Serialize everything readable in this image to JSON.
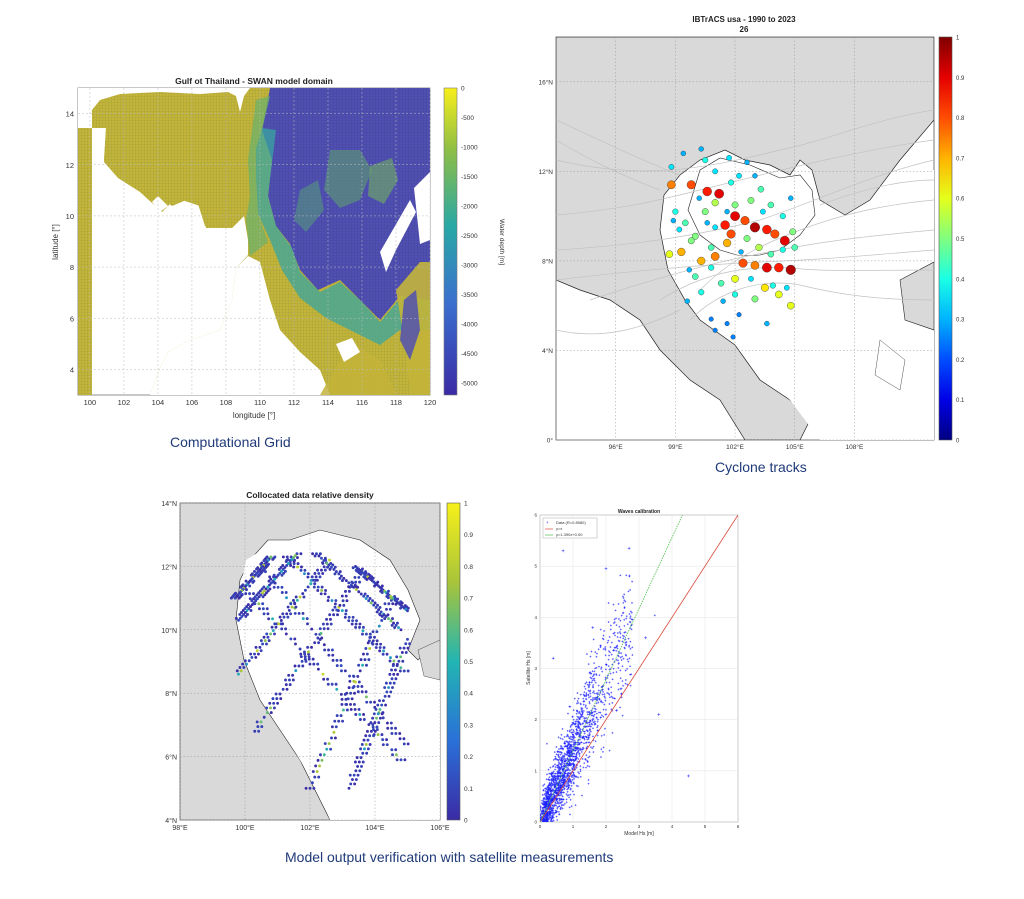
{
  "captions": {
    "grid": "Computational Grid",
    "cyclone": "Cyclone tracks",
    "verification": "Model output verification with satellite measurements"
  },
  "chart_data": [
    {
      "id": "grid",
      "type": "heatmap",
      "title": "Gulf ot Thailand - SWAN model domain",
      "xlabel": "longitude [°]",
      "ylabel": "latitude [°]",
      "xlim": [
        99.3,
        120
      ],
      "ylim": [
        3,
        15
      ],
      "xticks": [
        "100",
        "102",
        "104",
        "106",
        "108",
        "110",
        "112",
        "114",
        "116",
        "118",
        "120"
      ],
      "yticks": [
        "4",
        "6",
        "8",
        "10",
        "12",
        "14"
      ],
      "colorbar": {
        "label": "Water depth [m]",
        "ticks": [
          "0",
          "-500",
          "-1000",
          "-1500",
          "-2000",
          "-2500",
          "-3000",
          "-3500",
          "-4000",
          "-4500",
          "-5000"
        ],
        "range": [
          -5200,
          0
        ]
      },
      "colors": {
        "shallow": "#c4b538",
        "mid": "#2fa89a",
        "deep": "#4847b8",
        "grid": "#c9c9c9"
      }
    },
    {
      "id": "cyclone",
      "type": "scatter",
      "title": "IBTrACS usa - 1990 to 2023",
      "subtitle": "26",
      "xticks": [
        "96°E",
        "99°E",
        "102°E",
        "105°E",
        "108°E"
      ],
      "yticks": [
        "0°",
        "4°N",
        "8°N",
        "12°N",
        "16°N"
      ],
      "xlim": [
        93,
        112
      ],
      "ylim": [
        0,
        18
      ],
      "colorbar": {
        "ticks": [
          "0",
          "0.1",
          "0.2",
          "0.3",
          "0.4",
          "0.5",
          "0.6",
          "0.7",
          "0.8",
          "0.9",
          "1"
        ],
        "range": [
          0,
          1
        ]
      },
      "series": [
        {
          "values": [
            [
              100.6,
              11.1,
              0.85
            ],
            [
              101.2,
              11.0,
              0.9
            ],
            [
              99.8,
              11.4,
              0.8
            ],
            [
              100.3,
              8.0,
              0.7
            ],
            [
              101.0,
              8.2,
              0.75
            ],
            [
              101.5,
              9.6,
              0.85
            ],
            [
              102.0,
              10.0,
              0.9
            ],
            [
              102.5,
              9.8,
              0.8
            ],
            [
              103.0,
              9.5,
              0.95
            ],
            [
              103.6,
              9.4,
              0.85
            ],
            [
              104.0,
              9.2,
              0.8
            ],
            [
              104.5,
              8.9,
              0.9
            ],
            [
              101.8,
              9.2,
              0.8
            ],
            [
              101.6,
              8.8,
              0.7
            ],
            [
              102.4,
              7.9,
              0.8
            ],
            [
              103.0,
              7.8,
              0.75
            ],
            [
              103.6,
              7.7,
              0.9
            ],
            [
              104.2,
              7.7,
              0.85
            ],
            [
              104.8,
              7.6,
              0.95
            ],
            [
              99.3,
              8.4,
              0.7
            ],
            [
              104.8,
              6.0,
              0.6
            ],
            [
              104.2,
              6.5,
              0.6
            ],
            [
              103.5,
              6.8,
              0.65
            ],
            [
              102.0,
              7.2,
              0.6
            ],
            [
              98.8,
              11.4,
              0.75
            ],
            [
              98.7,
              8.3,
              0.6
            ],
            [
              100.0,
              9.1,
              0.5
            ],
            [
              99.5,
              9.7,
              0.45
            ],
            [
              100.5,
              10.2,
              0.5
            ],
            [
              101.0,
              10.6,
              0.55
            ],
            [
              102.8,
              10.7,
              0.5
            ],
            [
              103.3,
              11.2,
              0.45
            ],
            [
              102.0,
              10.5,
              0.5
            ],
            [
              102.6,
              9.0,
              0.5
            ],
            [
              103.2,
              8.6,
              0.55
            ],
            [
              100.8,
              8.6,
              0.45
            ],
            [
              99.8,
              8.9,
              0.5
            ],
            [
              99.0,
              10.2,
              0.4
            ],
            [
              98.8,
              12.2,
              0.35
            ],
            [
              100.5,
              12.5,
              0.4
            ],
            [
              101.0,
              12.0,
              0.35
            ],
            [
              101.8,
              11.5,
              0.4
            ],
            [
              103.8,
              10.5,
              0.45
            ],
            [
              104.4,
              10.0,
              0.4
            ],
            [
              104.9,
              9.3,
              0.5
            ],
            [
              102.0,
              6.5,
              0.4
            ],
            [
              101.3,
              7.0,
              0.45
            ],
            [
              100.3,
              6.6,
              0.4
            ],
            [
              100.0,
              7.3,
              0.45
            ],
            [
              103.0,
              6.3,
              0.5
            ],
            [
              101.0,
              9.5,
              0.35
            ],
            [
              102.3,
              8.4,
              0.3
            ],
            [
              99.2,
              9.4,
              0.35
            ],
            [
              100.8,
              7.7,
              0.4
            ],
            [
              103.8,
              8.3,
              0.45
            ],
            [
              104.4,
              8.5,
              0.4
            ],
            [
              103.4,
              10.2,
              0.35
            ],
            [
              101.6,
              10.2,
              0.3
            ],
            [
              100.2,
              10.8,
              0.3
            ],
            [
              98.9,
              9.8,
              0.3
            ],
            [
              101.4,
              6.2,
              0.3
            ],
            [
              100.8,
              5.4,
              0.25
            ],
            [
              101.6,
              5.2,
              0.25
            ],
            [
              102.2,
              5.6,
              0.25
            ],
            [
              99.6,
              6.2,
              0.3
            ],
            [
              103.9,
              6.9,
              0.4
            ],
            [
              104.6,
              6.8,
              0.35
            ],
            [
              100.3,
              13.0,
              0.3
            ],
            [
              99.4,
              12.8,
              0.3
            ],
            [
              101.7,
              12.6,
              0.35
            ],
            [
              102.6,
              12.4,
              0.3
            ],
            [
              102.2,
              11.8,
              0.35
            ],
            [
              103.0,
              11.8,
              0.3
            ],
            [
              104.8,
              10.8,
              0.3
            ],
            [
              105.0,
              8.6,
              0.45
            ],
            [
              99.7,
              7.6,
              0.3
            ],
            [
              101.0,
              4.9,
              0.25
            ],
            [
              101.9,
              4.6,
              0.25
            ],
            [
              103.6,
              5.2,
              0.3
            ],
            [
              100.6,
              9.7,
              0.3
            ],
            [
              102.8,
              7.2,
              0.35
            ]
          ]
        }
      ],
      "colors": {
        "land": "#d9d9d9",
        "track": "#c2c2c2"
      }
    },
    {
      "id": "density",
      "type": "scatter",
      "title": "Collocated data relative density",
      "xticks": [
        "98°E",
        "100°E",
        "102°E",
        "104°E",
        "106°E"
      ],
      "yticks": [
        "4°N",
        "6°N",
        "8°N",
        "10°N",
        "12°N",
        "14°N"
      ],
      "xlim": [
        98,
        106
      ],
      "ylim": [
        4,
        14
      ],
      "colorbar": {
        "ticks": [
          "0",
          "0.1",
          "0.2",
          "0.3",
          "0.4",
          "0.5",
          "0.6",
          "0.7",
          "0.8",
          "0.9",
          "1"
        ],
        "range": [
          0,
          1
        ]
      },
      "tracks": [
        {
          "from": [
            100.0,
            11.3
          ],
          "to": [
            104.8,
            5.9
          ]
        },
        {
          "from": [
            100.5,
            12.0
          ],
          "to": [
            104.9,
            6.4
          ]
        },
        {
          "from": [
            101.3,
            12.3
          ],
          "to": [
            104.9,
            8.7
          ]
        },
        {
          "from": [
            102.2,
            12.4
          ],
          "to": [
            104.8,
            10.0
          ]
        },
        {
          "from": [
            103.4,
            12.0
          ],
          "to": [
            105.0,
            10.6
          ]
        },
        {
          "from": [
            104.5,
            11.0
          ],
          "to": [
            102.0,
            5.0
          ]
        },
        {
          "from": [
            103.6,
            11.8
          ],
          "to": [
            100.3,
            6.8
          ]
        },
        {
          "from": [
            102.6,
            12.2
          ],
          "to": [
            99.8,
            8.6
          ]
        },
        {
          "from": [
            101.6,
            12.4
          ],
          "to": [
            99.8,
            10.3
          ]
        },
        {
          "from": [
            105.0,
            9.7
          ],
          "to": [
            103.2,
            5.0
          ]
        },
        {
          "from": [
            100.8,
            12.3
          ],
          "to": [
            99.7,
            11.0
          ]
        }
      ],
      "colors": {
        "low": "#2d2fa0",
        "mid": "#2fb6a6",
        "high": "#f2ea3a",
        "land": "#d9d9d9"
      }
    },
    {
      "id": "calibration",
      "type": "scatter",
      "title": "Waves calibration",
      "xlabel": "Model Hs [m]",
      "ylabel": "Satellite Hs [m]",
      "xlim": [
        0,
        6
      ],
      "ylim": [
        0,
        6
      ],
      "xticks": [
        "0",
        "1",
        "2",
        "3",
        "4",
        "5",
        "6"
      ],
      "yticks": [
        "0",
        "1",
        "2",
        "3",
        "4",
        "5",
        "6"
      ],
      "legend": {
        "position": "top-left",
        "entries": [
          "Data (R=0.8980)",
          "y=x",
          "y=1.390x+0.00"
        ]
      },
      "series": [
        {
          "name": "Data (R=0.8980)",
          "cloud": {
            "slope": 1.39,
            "n": 1800,
            "xmax": 3.5
          }
        },
        {
          "name": "y=x",
          "slope": 1.0,
          "color": "#d9483b"
        },
        {
          "name": "y=1.390x+0.00",
          "slope": 1.39,
          "color": "#4fbf4a"
        }
      ],
      "outliers": [
        [
          0.7,
          5.3
        ],
        [
          2.7,
          5.35
        ],
        [
          2.0,
          4.95
        ],
        [
          0.4,
          3.2
        ],
        [
          3.2,
          3.6
        ],
        [
          1.6,
          3.8
        ],
        [
          4.5,
          0.9
        ],
        [
          3.6,
          2.1
        ]
      ],
      "colors": {
        "points": "#1e23ff"
      }
    }
  ]
}
